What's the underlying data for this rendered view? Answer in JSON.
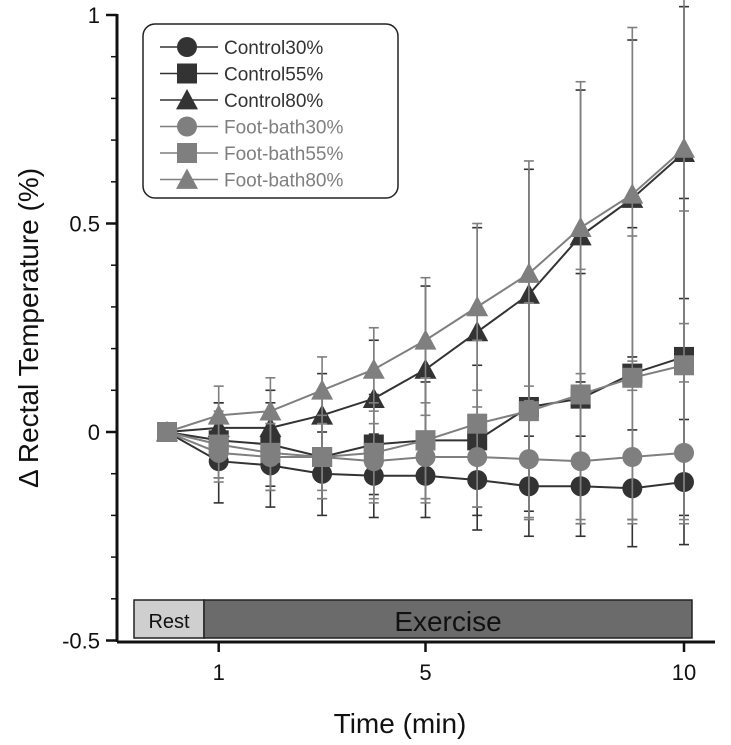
{
  "chart_data": {
    "type": "line",
    "ylabel": "Δ Rectal Temperature  (%)",
    "xlabel": "Time (min)",
    "x": [
      0,
      1,
      2,
      3,
      4,
      5,
      6,
      7,
      8,
      9,
      10
    ],
    "xticks": [
      1,
      5,
      10
    ],
    "yticks": [
      -0.5,
      0,
      0.5,
      1
    ],
    "ytick_labels": [
      "-0.5",
      "0",
      "0.5",
      "1"
    ],
    "ylim": [
      -0.5,
      1.0
    ],
    "grid": false,
    "legend_position": "top-left",
    "series": [
      {
        "name": "Control30%",
        "marker": "circle",
        "color": "#333333",
        "values": [
          0,
          -0.07,
          -0.08,
          -0.1,
          -0.105,
          -0.105,
          -0.115,
          -0.13,
          -0.13,
          -0.135,
          -0.12
        ],
        "errors": [
          0,
          0.1,
          0.1,
          0.1,
          0.1,
          0.1,
          0.12,
          0.12,
          0.12,
          0.14,
          0.15
        ]
      },
      {
        "name": "Control55%",
        "marker": "square",
        "color": "#333333",
        "values": [
          0,
          -0.02,
          -0.03,
          -0.06,
          -0.03,
          -0.02,
          -0.02,
          0.06,
          0.08,
          0.14,
          0.18
        ],
        "errors": [
          0,
          0.09,
          0.1,
          0.1,
          0.12,
          0.14,
          0.18,
          0.25,
          0.3,
          0.35,
          0.38
        ]
      },
      {
        "name": "Control80%",
        "marker": "triangle",
        "color": "#333333",
        "values": [
          0,
          0.01,
          0.01,
          0.04,
          0.08,
          0.15,
          0.24,
          0.33,
          0.47,
          0.56,
          0.67
        ],
        "errors": [
          0,
          0.06,
          0.09,
          0.1,
          0.14,
          0.2,
          0.25,
          0.3,
          0.35,
          0.38,
          0.35
        ]
      },
      {
        "name": "Foot-bath30%",
        "marker": "circle",
        "color": "#7f7f7f",
        "values": [
          0,
          -0.05,
          -0.06,
          -0.06,
          -0.07,
          -0.06,
          -0.06,
          -0.065,
          -0.07,
          -0.06,
          -0.05
        ],
        "errors": [
          0,
          0.07,
          0.08,
          0.08,
          0.09,
          0.1,
          0.12,
          0.14,
          0.15,
          0.16,
          0.17
        ]
      },
      {
        "name": "Foot-bath55%",
        "marker": "square",
        "color": "#7f7f7f",
        "values": [
          0,
          -0.03,
          -0.05,
          -0.06,
          -0.05,
          -0.02,
          0.02,
          0.05,
          0.09,
          0.13,
          0.16
        ],
        "errors": [
          0,
          0.08,
          0.09,
          0.1,
          0.12,
          0.15,
          0.2,
          0.26,
          0.3,
          0.34,
          0.37
        ]
      },
      {
        "name": "Foot-bath80%",
        "marker": "triangle",
        "color": "#7f7f7f",
        "values": [
          0,
          0.04,
          0.05,
          0.1,
          0.15,
          0.22,
          0.3,
          0.38,
          0.49,
          0.57,
          0.68
        ],
        "errors": [
          0,
          0.07,
          0.08,
          0.08,
          0.1,
          0.15,
          0.2,
          0.27,
          0.35,
          0.4,
          0.42
        ]
      }
    ],
    "bar_labels": {
      "rest": "Rest",
      "exercise": "Exercise"
    }
  }
}
